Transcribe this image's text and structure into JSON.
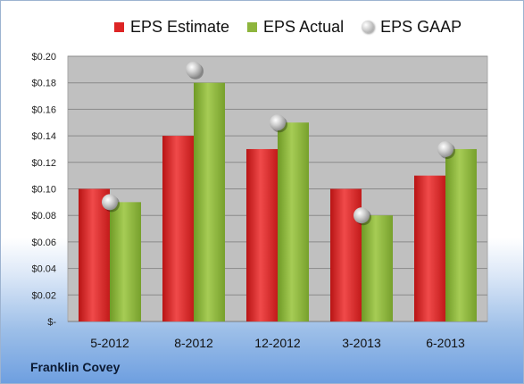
{
  "chart_data": {
    "type": "bar",
    "title": "",
    "xlabel": "",
    "ylabel": "",
    "categories": [
      "5-2012",
      "8-2012",
      "12-2012",
      "3-2013",
      "6-2013"
    ],
    "series": [
      {
        "name": "EPS Estimate",
        "values": [
          0.1,
          0.14,
          0.13,
          0.1,
          0.11
        ],
        "color": "#dd2525",
        "kind": "bar"
      },
      {
        "name": "EPS Actual",
        "values": [
          0.09,
          0.18,
          0.15,
          0.08,
          0.13
        ],
        "color": "#8eb53d",
        "kind": "bar"
      },
      {
        "name": "EPS GAAP",
        "values": [
          0.09,
          0.19,
          0.15,
          0.08,
          0.13
        ],
        "color": "#b8b8b8",
        "kind": "marker"
      }
    ],
    "ylim": [
      0,
      0.2
    ],
    "yticks": [
      0,
      0.02,
      0.04,
      0.06,
      0.08,
      0.1,
      0.12,
      0.14,
      0.16,
      0.18,
      0.2
    ],
    "ytick_labels": [
      "$-",
      "$0.02",
      "$0.04",
      "$0.06",
      "$0.08",
      "$0.10",
      "$0.12",
      "$0.14",
      "$0.16",
      "$0.18",
      "$0.20"
    ],
    "grid": true,
    "legend_position": "top",
    "plot_background": "#c0c0c0"
  },
  "footer": {
    "company": "Franklin Covey"
  }
}
